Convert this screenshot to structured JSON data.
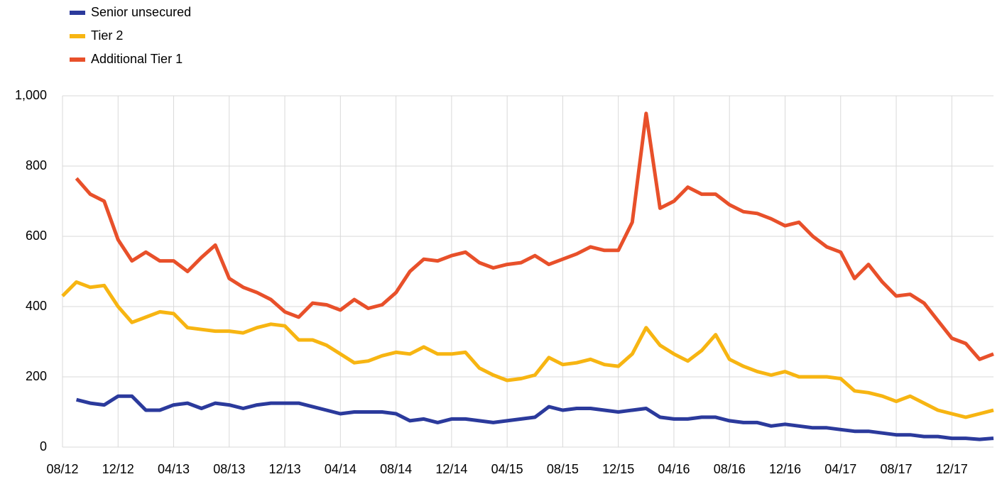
{
  "chart_data": {
    "type": "line",
    "categories": [
      "08/12",
      null,
      null,
      null,
      "12/12",
      null,
      null,
      null,
      "04/13",
      null,
      null,
      null,
      "08/13",
      null,
      null,
      null,
      "12/13",
      null,
      null,
      null,
      "04/14",
      null,
      null,
      null,
      "08/14",
      null,
      null,
      null,
      "12/14",
      null,
      null,
      null,
      "04/15",
      null,
      null,
      null,
      "08/15",
      null,
      null,
      null,
      "12/15",
      null,
      null,
      null,
      "04/16",
      null,
      null,
      null,
      "08/16",
      null,
      null,
      null,
      "12/16",
      null,
      null,
      null,
      "04/17",
      null,
      null,
      null,
      "08/17",
      null,
      null,
      null,
      "12/17",
      null,
      null,
      null
    ],
    "series": [
      {
        "name": "Senior unsecured",
        "color": "#2b3a9c",
        "values": [
          null,
          135,
          125,
          120,
          145,
          145,
          105,
          105,
          120,
          125,
          110,
          125,
          120,
          110,
          120,
          125,
          125,
          125,
          115,
          105,
          95,
          100,
          100,
          100,
          95,
          75,
          80,
          70,
          80,
          80,
          75,
          70,
          75,
          80,
          85,
          115,
          105,
          110,
          110,
          105,
          100,
          105,
          110,
          85,
          80,
          80,
          85,
          85,
          75,
          70,
          70,
          60,
          65,
          60,
          55,
          55,
          50,
          45,
          45,
          40,
          35,
          35,
          30,
          30,
          25,
          25,
          22,
          25
        ]
      },
      {
        "name": "Tier 2",
        "color": "#f7b512",
        "values": [
          430,
          470,
          455,
          460,
          400,
          355,
          370,
          385,
          380,
          340,
          335,
          330,
          330,
          325,
          340,
          350,
          345,
          305,
          305,
          290,
          265,
          240,
          245,
          260,
          270,
          265,
          285,
          265,
          265,
          270,
          225,
          205,
          190,
          195,
          205,
          255,
          235,
          240,
          250,
          235,
          230,
          265,
          340,
          290,
          265,
          245,
          275,
          320,
          250,
          230,
          215,
          205,
          215,
          200,
          200,
          200,
          195,
          160,
          155,
          145,
          130,
          145,
          125,
          105,
          95,
          85,
          95,
          105
        ]
      },
      {
        "name": "Additional Tier 1",
        "color": "#e8502a",
        "values": [
          null,
          765,
          720,
          700,
          590,
          530,
          555,
          530,
          530,
          500,
          540,
          575,
          480,
          455,
          440,
          420,
          385,
          370,
          410,
          405,
          390,
          420,
          395,
          405,
          440,
          500,
          535,
          530,
          545,
          555,
          525,
          510,
          520,
          525,
          545,
          520,
          535,
          550,
          570,
          560,
          560,
          640,
          950,
          680,
          700,
          740,
          720,
          720,
          690,
          670,
          665,
          650,
          630,
          640,
          600,
          570,
          555,
          480,
          520,
          470,
          430,
          435,
          410,
          360,
          310,
          295,
          250,
          265
        ]
      }
    ],
    "ylim": [
      0,
      1000
    ],
    "yticks": [
      0,
      200,
      400,
      600,
      800,
      {
        "value": 1000,
        "label": "1,000"
      }
    ],
    "grid": true
  }
}
